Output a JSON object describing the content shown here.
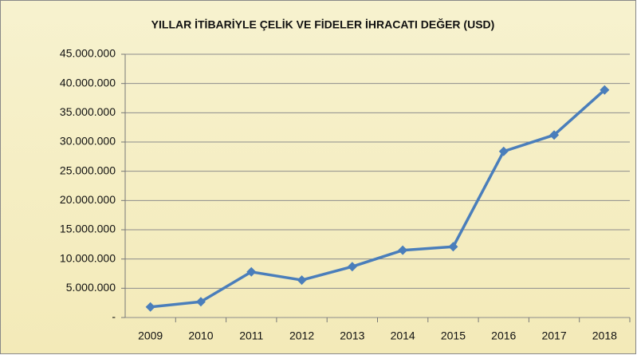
{
  "chart_data": {
    "type": "line",
    "title": "YILLAR İTİBARİYLE ÇELİK VE FİDELER İHRACATI  DEĞER (USD)",
    "categories": [
      "2009",
      "2010",
      "2011",
      "2012",
      "2013",
      "2014",
      "2015",
      "2016",
      "2017",
      "2018"
    ],
    "series": [
      {
        "name": "DEĞER (USD)",
        "color": "#4a7ebb",
        "values": [
          1800000,
          2700000,
          7800000,
          6400000,
          8700000,
          11500000,
          12100000,
          28400000,
          31200000,
          38900000
        ]
      }
    ],
    "ylim": [
      0,
      45000000
    ],
    "yticks": [
      {
        "value": 0,
        "label": "-"
      },
      {
        "value": 5000000,
        "label": "5.000.000"
      },
      {
        "value": 10000000,
        "label": "10.000.000"
      },
      {
        "value": 15000000,
        "label": "15.000.000"
      },
      {
        "value": 20000000,
        "label": "20.000.000"
      },
      {
        "value": 25000000,
        "label": "25.000.000"
      },
      {
        "value": 30000000,
        "label": "30.000.000"
      },
      {
        "value": 35000000,
        "label": "35.000.000"
      },
      {
        "value": 40000000,
        "label": "40.000.000"
      },
      {
        "value": 45000000,
        "label": "45.000.000"
      }
    ],
    "grid": true
  }
}
